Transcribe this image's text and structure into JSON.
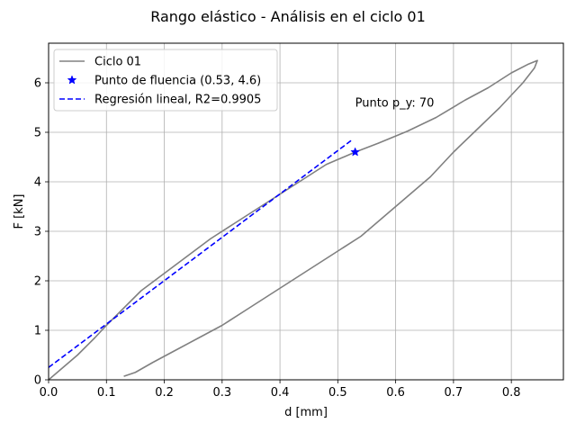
{
  "chart_data": {
    "type": "line",
    "title": "Rango elástico - Análisis en el ciclo 01",
    "xlabel": "d [mm]",
    "ylabel": "F [kN]",
    "xlim": [
      0.0,
      0.89
    ],
    "ylim": [
      0,
      6.8
    ],
    "xticks": [
      "0.0",
      "0.1",
      "0.2",
      "0.3",
      "0.4",
      "0.5",
      "0.6",
      "0.7",
      "0.8"
    ],
    "yticks": [
      "0",
      "1",
      "2",
      "3",
      "4",
      "5",
      "6"
    ],
    "grid": true,
    "legend_position": "top-left",
    "series": [
      {
        "name": "Ciclo 01",
        "style": "solid",
        "color": "#808080",
        "points": [
          [
            0.0,
            0.0
          ],
          [
            0.02,
            0.2
          ],
          [
            0.05,
            0.5
          ],
          [
            0.08,
            0.85
          ],
          [
            0.1,
            1.1
          ],
          [
            0.13,
            1.45
          ],
          [
            0.16,
            1.8
          ],
          [
            0.2,
            2.15
          ],
          [
            0.24,
            2.5
          ],
          [
            0.28,
            2.85
          ],
          [
            0.32,
            3.15
          ],
          [
            0.36,
            3.45
          ],
          [
            0.4,
            3.75
          ],
          [
            0.44,
            4.05
          ],
          [
            0.48,
            4.35
          ],
          [
            0.53,
            4.6
          ],
          [
            0.57,
            4.78
          ],
          [
            0.62,
            5.02
          ],
          [
            0.67,
            5.3
          ],
          [
            0.72,
            5.65
          ],
          [
            0.76,
            5.9
          ],
          [
            0.8,
            6.2
          ],
          [
            0.83,
            6.38
          ],
          [
            0.845,
            6.45
          ],
          [
            0.84,
            6.3
          ],
          [
            0.82,
            6.0
          ],
          [
            0.78,
            5.5
          ],
          [
            0.74,
            5.05
          ],
          [
            0.7,
            4.6
          ],
          [
            0.66,
            4.1
          ],
          [
            0.62,
            3.7
          ],
          [
            0.58,
            3.3
          ],
          [
            0.54,
            2.9
          ],
          [
            0.5,
            2.6
          ],
          [
            0.46,
            2.3
          ],
          [
            0.42,
            2.0
          ],
          [
            0.38,
            1.7
          ],
          [
            0.34,
            1.4
          ],
          [
            0.3,
            1.1
          ],
          [
            0.26,
            0.85
          ],
          [
            0.22,
            0.6
          ],
          [
            0.18,
            0.35
          ],
          [
            0.15,
            0.15
          ],
          [
            0.13,
            0.07
          ]
        ]
      },
      {
        "name": "Punto de fluencia (0.53, 4.6)",
        "style": "star-marker",
        "color": "#0000ff",
        "points": [
          [
            0.53,
            4.6
          ]
        ]
      },
      {
        "name": "Regresión lineal, R2=0.9905",
        "style": "dashed",
        "color": "#0000ff",
        "points": [
          [
            0.0,
            0.25
          ],
          [
            0.525,
            4.85
          ]
        ]
      }
    ],
    "annotations": [
      {
        "text": "Punto p_y: 70",
        "x": 0.53,
        "y": 5.52
      }
    ]
  }
}
